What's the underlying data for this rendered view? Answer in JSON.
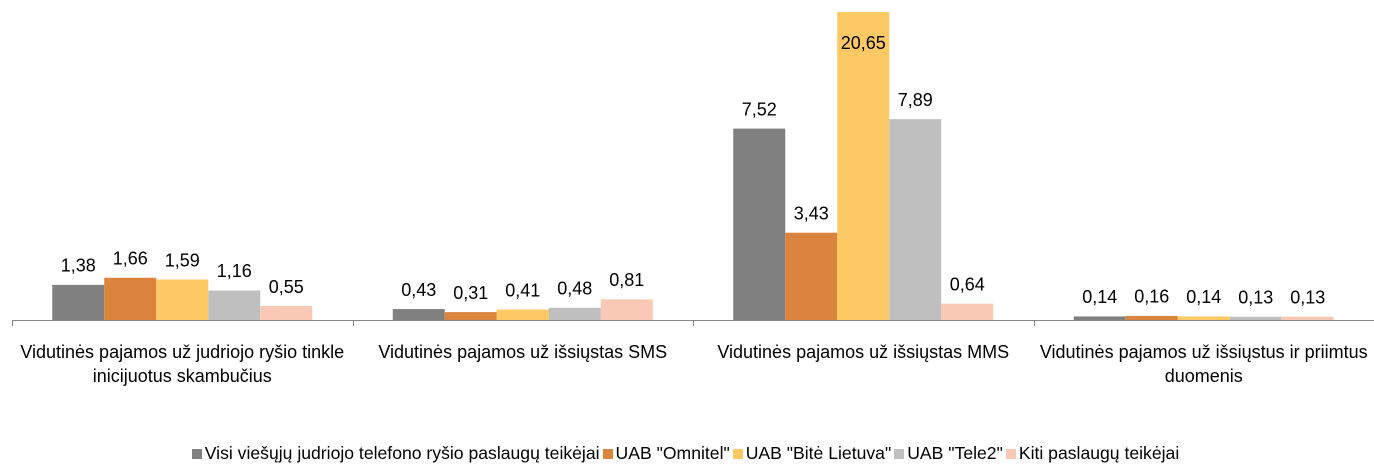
{
  "chart_data": {
    "type": "bar",
    "categories": [
      "Vidutinės pajamos už judriojo ryšio tinkle inicijuotus skambučius",
      "Vidutinės pajamos už išsiųstas SMS",
      "Vidutinės pajamos už išsiųstas MMS",
      "Vidutinės pajamos už išsiųstus ir priimtus duomenis"
    ],
    "series": [
      {
        "name": "Visi viešųjų judriojo telefono ryšio paslaugų teikėjai",
        "color": "#808080",
        "values": [
          1.38,
          0.43,
          7.52,
          0.14
        ],
        "value_labels": [
          "1,38",
          "0,43",
          "7,52",
          "0,14"
        ]
      },
      {
        "name": "UAB \"Omnitel\"",
        "color": "#db843d",
        "values": [
          1.66,
          0.31,
          3.43,
          0.16
        ],
        "value_labels": [
          "1,66",
          "0,31",
          "3,43",
          "0,16"
        ]
      },
      {
        "name": "UAB \"Bitė Lietuva\"",
        "color": "#fdc965",
        "values": [
          1.59,
          0.41,
          20.65,
          0.14
        ],
        "value_labels": [
          "1,59",
          "0,41",
          "20,65",
          "0,14"
        ]
      },
      {
        "name": "UAB \"Tele2\"",
        "color": "#bfbfbf",
        "values": [
          1.16,
          0.48,
          7.89,
          0.13
        ],
        "value_labels": [
          "1,16",
          "0,48",
          "7,89",
          "0,13"
        ]
      },
      {
        "name": "Kiti paslaugų teikėjai",
        "color": "#f9c9b5",
        "values": [
          0.55,
          0.81,
          0.64,
          0.13
        ],
        "value_labels": [
          "0,55",
          "0,81",
          "0,64",
          "0,13"
        ]
      }
    ],
    "ylim": [
      0,
      12.1
    ],
    "legend": "bottom"
  }
}
